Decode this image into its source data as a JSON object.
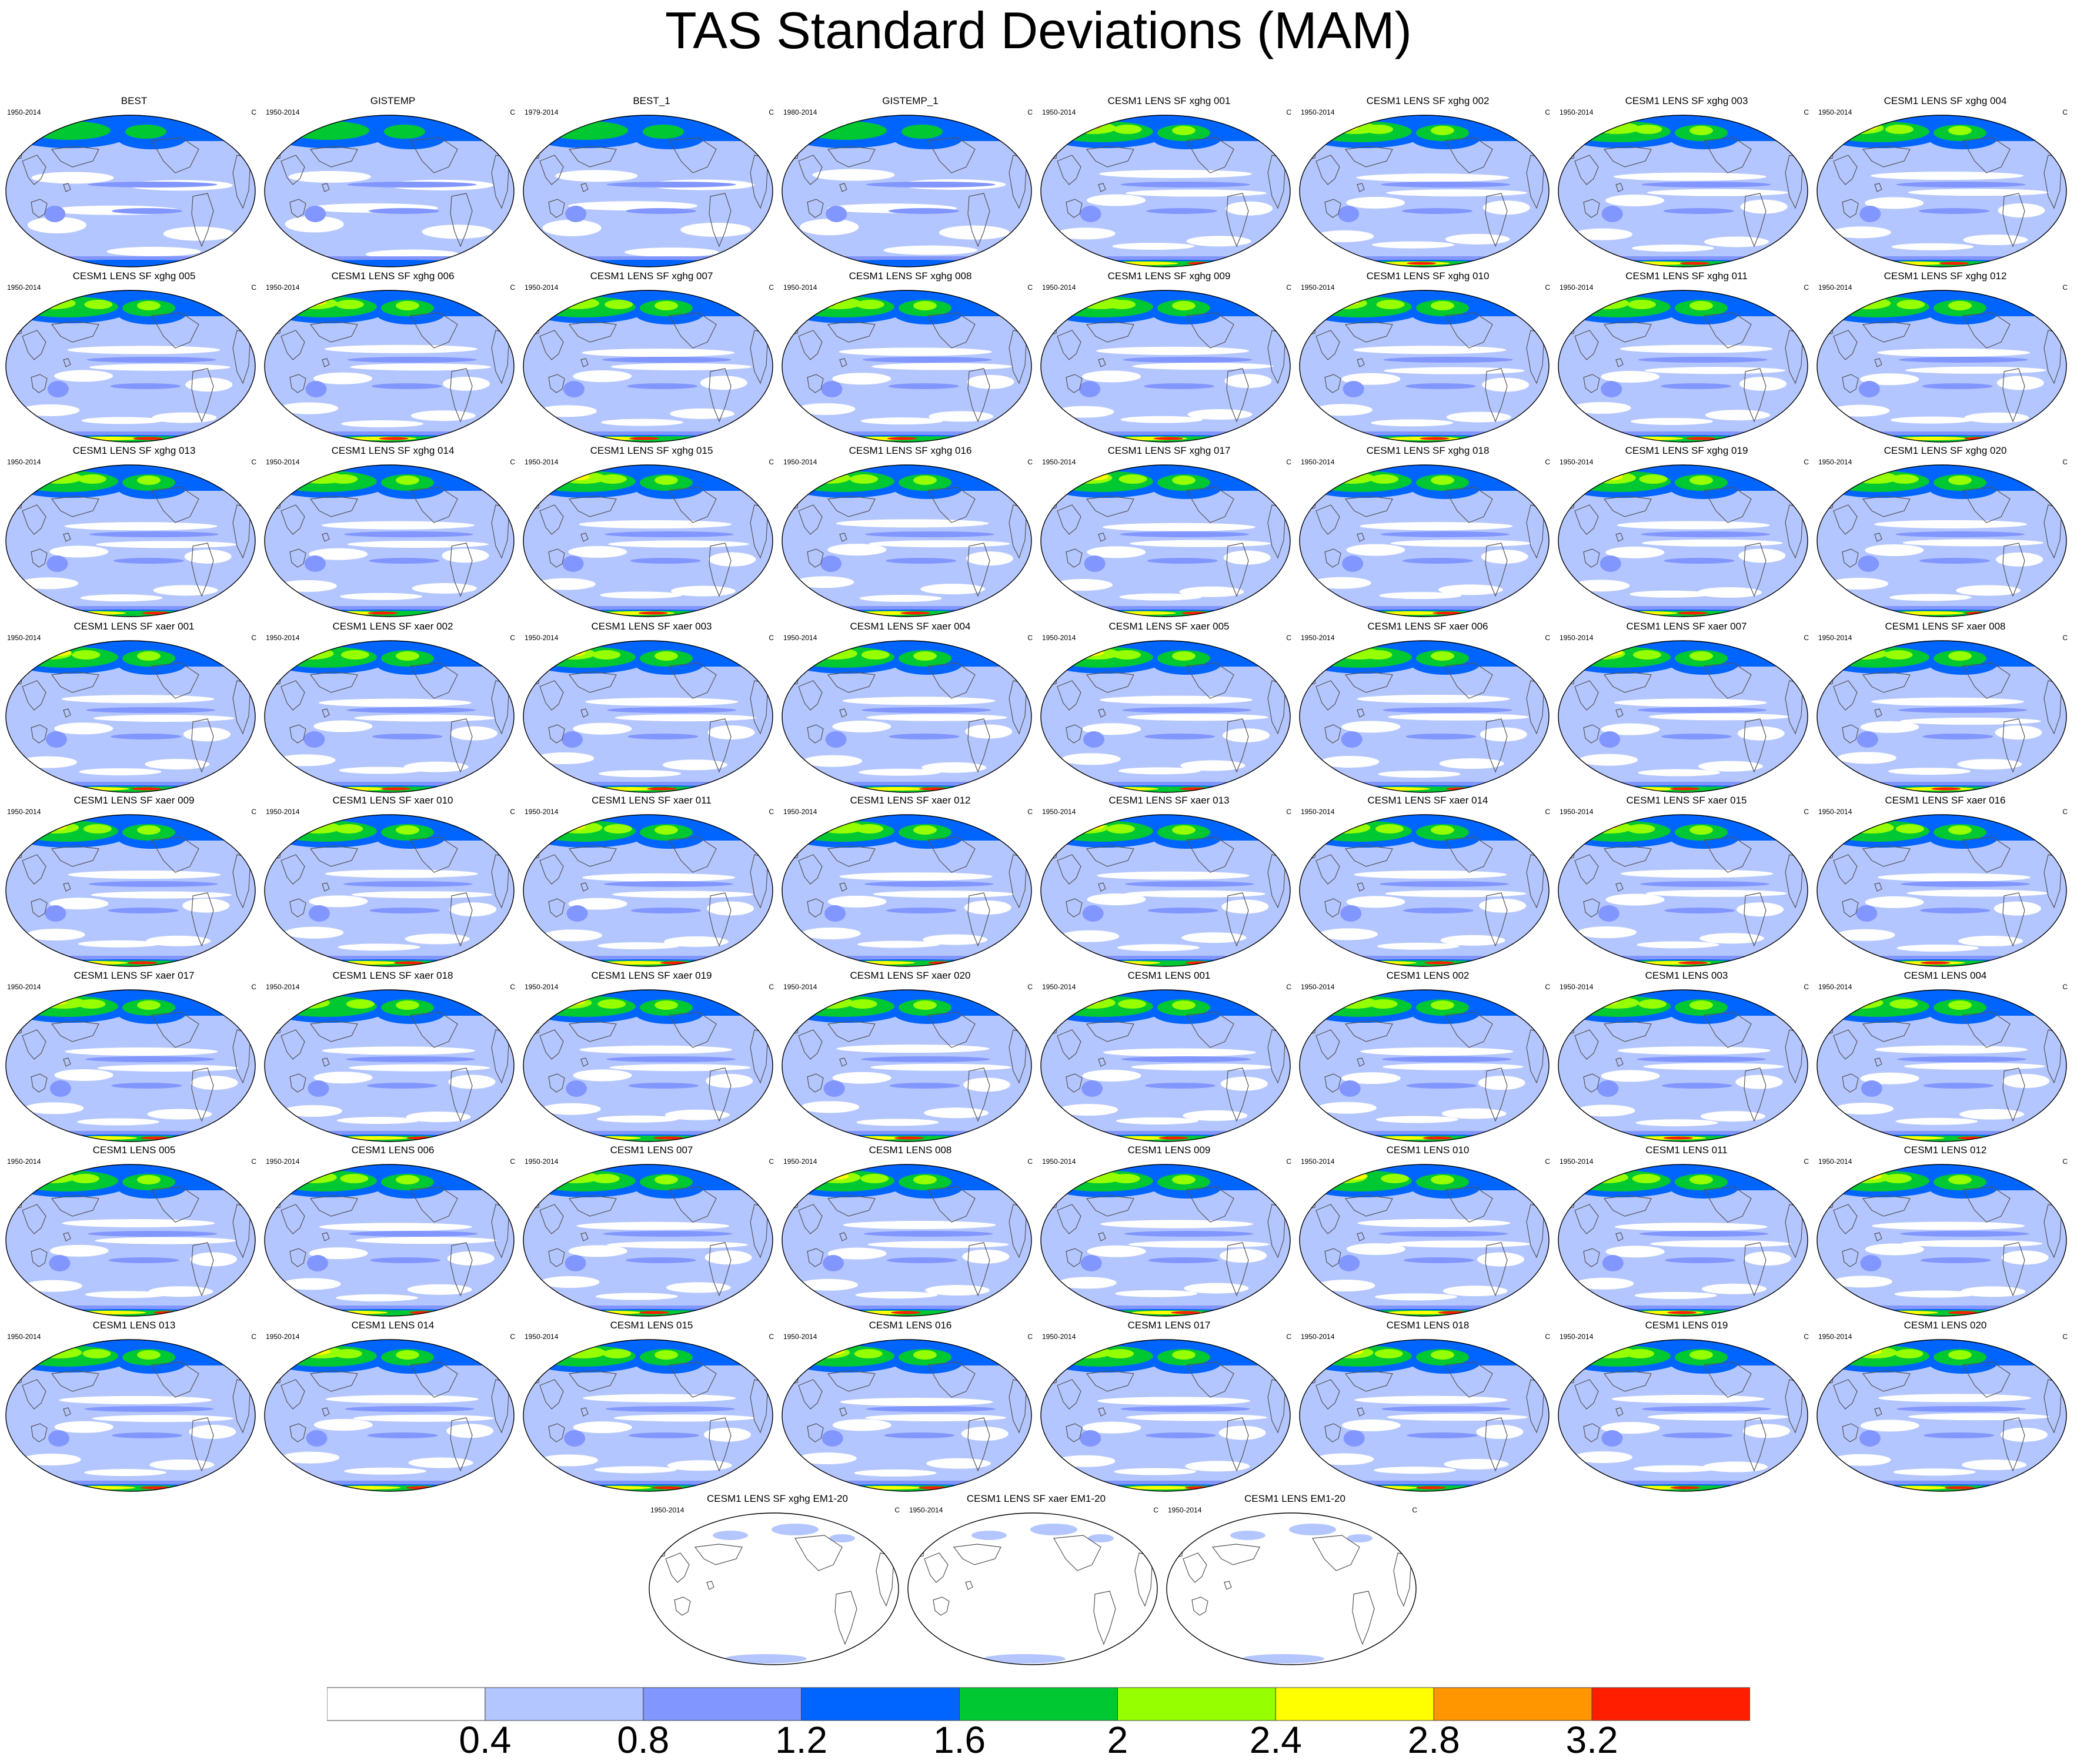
{
  "title": "TAS Standard Deviations (MAM)",
  "units": "C",
  "colors": {
    "levels": [
      "#ffffff",
      "#b4c6ff",
      "#8296ff",
      "#0064ff",
      "#00c832",
      "#96ff00",
      "#ffff00",
      "#ff9600",
      "#ff1e00"
    ],
    "coast": "#555555",
    "border": "#000000"
  },
  "colorbar": {
    "labels": [
      "0.4",
      "0.8",
      "1.2",
      "1.6",
      "2",
      "2.4",
      "2.8",
      "3.2"
    ]
  },
  "panels": [
    {
      "name": "BEST",
      "years": "1950-2014",
      "type": "obs"
    },
    {
      "name": "GISTEMP",
      "years": "1950-2014",
      "type": "obs"
    },
    {
      "name": "BEST_1",
      "years": "1979-2014",
      "type": "obs"
    },
    {
      "name": "GISTEMP_1",
      "years": "1980-2014",
      "type": "obs"
    },
    {
      "name": "CESM1 LENS SF xghg 001",
      "years": "1950-2014",
      "type": "model"
    },
    {
      "name": "CESM1 LENS SF xghg 002",
      "years": "1950-2014",
      "type": "model"
    },
    {
      "name": "CESM1 LENS SF xghg 003",
      "years": "1950-2014",
      "type": "model"
    },
    {
      "name": "CESM1 LENS SF xghg 004",
      "years": "1950-2014",
      "type": "model"
    },
    {
      "name": "CESM1 LENS SF xghg 005",
      "years": "1950-2014",
      "type": "model"
    },
    {
      "name": "CESM1 LENS SF xghg 006",
      "years": "1950-2014",
      "type": "model"
    },
    {
      "name": "CESM1 LENS SF xghg 007",
      "years": "1950-2014",
      "type": "model"
    },
    {
      "name": "CESM1 LENS SF xghg 008",
      "years": "1950-2014",
      "type": "model"
    },
    {
      "name": "CESM1 LENS SF xghg 009",
      "years": "1950-2014",
      "type": "model"
    },
    {
      "name": "CESM1 LENS SF xghg 010",
      "years": "1950-2014",
      "type": "model"
    },
    {
      "name": "CESM1 LENS SF xghg 011",
      "years": "1950-2014",
      "type": "model"
    },
    {
      "name": "CESM1 LENS SF xghg 012",
      "years": "1950-2014",
      "type": "model"
    },
    {
      "name": "CESM1 LENS SF xghg 013",
      "years": "1950-2014",
      "type": "model"
    },
    {
      "name": "CESM1 LENS SF xghg 014",
      "years": "1950-2014",
      "type": "model"
    },
    {
      "name": "CESM1 LENS SF xghg 015",
      "years": "1950-2014",
      "type": "model"
    },
    {
      "name": "CESM1 LENS SF xghg 016",
      "years": "1950-2014",
      "type": "model"
    },
    {
      "name": "CESM1 LENS SF xghg 017",
      "years": "1950-2014",
      "type": "model"
    },
    {
      "name": "CESM1 LENS SF xghg 018",
      "years": "1950-2014",
      "type": "model"
    },
    {
      "name": "CESM1 LENS SF xghg 019",
      "years": "1950-2014",
      "type": "model"
    },
    {
      "name": "CESM1 LENS SF xghg 020",
      "years": "1950-2014",
      "type": "model"
    },
    {
      "name": "CESM1 LENS SF xaer 001",
      "years": "1950-2014",
      "type": "model"
    },
    {
      "name": "CESM1 LENS SF xaer 002",
      "years": "1950-2014",
      "type": "model"
    },
    {
      "name": "CESM1 LENS SF xaer 003",
      "years": "1950-2014",
      "type": "model"
    },
    {
      "name": "CESM1 LENS SF xaer 004",
      "years": "1950-2014",
      "type": "model"
    },
    {
      "name": "CESM1 LENS SF xaer 005",
      "years": "1950-2014",
      "type": "model"
    },
    {
      "name": "CESM1 LENS SF xaer 006",
      "years": "1950-2014",
      "type": "model"
    },
    {
      "name": "CESM1 LENS SF xaer 007",
      "years": "1950-2014",
      "type": "model"
    },
    {
      "name": "CESM1 LENS SF xaer 008",
      "years": "1950-2014",
      "type": "model"
    },
    {
      "name": "CESM1 LENS SF xaer 009",
      "years": "1950-2014",
      "type": "model"
    },
    {
      "name": "CESM1 LENS SF xaer 010",
      "years": "1950-2014",
      "type": "model"
    },
    {
      "name": "CESM1 LENS SF xaer 011",
      "years": "1950-2014",
      "type": "model"
    },
    {
      "name": "CESM1 LENS SF xaer 012",
      "years": "1950-2014",
      "type": "model"
    },
    {
      "name": "CESM1 LENS SF xaer 013",
      "years": "1950-2014",
      "type": "model"
    },
    {
      "name": "CESM1 LENS SF xaer 014",
      "years": "1950-2014",
      "type": "model"
    },
    {
      "name": "CESM1 LENS SF xaer 015",
      "years": "1950-2014",
      "type": "model"
    },
    {
      "name": "CESM1 LENS SF xaer 016",
      "years": "1950-2014",
      "type": "model"
    },
    {
      "name": "CESM1 LENS SF xaer 017",
      "years": "1950-2014",
      "type": "model"
    },
    {
      "name": "CESM1 LENS SF xaer 018",
      "years": "1950-2014",
      "type": "model"
    },
    {
      "name": "CESM1 LENS SF xaer 019",
      "years": "1950-2014",
      "type": "model"
    },
    {
      "name": "CESM1 LENS SF xaer 020",
      "years": "1950-2014",
      "type": "model"
    },
    {
      "name": "CESM1 LENS 001",
      "years": "1950-2014",
      "type": "model"
    },
    {
      "name": "CESM1 LENS 002",
      "years": "1950-2014",
      "type": "model"
    },
    {
      "name": "CESM1 LENS 003",
      "years": "1950-2014",
      "type": "model"
    },
    {
      "name": "CESM1 LENS 004",
      "years": "1950-2014",
      "type": "model"
    },
    {
      "name": "CESM1 LENS 005",
      "years": "1950-2014",
      "type": "model"
    },
    {
      "name": "CESM1 LENS 006",
      "years": "1950-2014",
      "type": "model"
    },
    {
      "name": "CESM1 LENS 007",
      "years": "1950-2014",
      "type": "model"
    },
    {
      "name": "CESM1 LENS 008",
      "years": "1950-2014",
      "type": "model"
    },
    {
      "name": "CESM1 LENS 009",
      "years": "1950-2014",
      "type": "model"
    },
    {
      "name": "CESM1 LENS 010",
      "years": "1950-2014",
      "type": "model"
    },
    {
      "name": "CESM1 LENS 011",
      "years": "1950-2014",
      "type": "model"
    },
    {
      "name": "CESM1 LENS 012",
      "years": "1950-2014",
      "type": "model"
    },
    {
      "name": "CESM1 LENS 013",
      "years": "1950-2014",
      "type": "model"
    },
    {
      "name": "CESM1 LENS 014",
      "years": "1950-2014",
      "type": "model"
    },
    {
      "name": "CESM1 LENS 015",
      "years": "1950-2014",
      "type": "model"
    },
    {
      "name": "CESM1 LENS 016",
      "years": "1950-2014",
      "type": "model"
    },
    {
      "name": "CESM1 LENS 017",
      "years": "1950-2014",
      "type": "model"
    },
    {
      "name": "CESM1 LENS 018",
      "years": "1950-2014",
      "type": "model"
    },
    {
      "name": "CESM1 LENS 019",
      "years": "1950-2014",
      "type": "model"
    },
    {
      "name": "CESM1 LENS 020",
      "years": "1950-2014",
      "type": "model"
    },
    {
      "name": "CESM1 LENS SF xghg EM1-20",
      "years": "1950-2014",
      "type": "mean"
    },
    {
      "name": "CESM1 LENS SF xaer EM1-20",
      "years": "1950-2014",
      "type": "mean"
    },
    {
      "name": "CESM1 LENS EM1-20",
      "years": "1950-2014",
      "type": "mean"
    }
  ]
}
